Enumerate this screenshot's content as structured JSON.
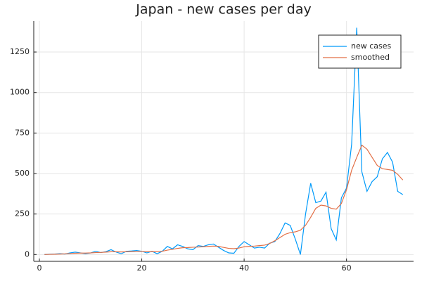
{
  "chart_data": {
    "type": "line",
    "title": "Japan - new cases per day",
    "x": [
      1,
      2,
      3,
      4,
      5,
      6,
      7,
      8,
      9,
      10,
      11,
      12,
      13,
      14,
      15,
      16,
      17,
      18,
      19,
      20,
      21,
      22,
      23,
      24,
      25,
      26,
      27,
      28,
      29,
      30,
      31,
      32,
      33,
      34,
      35,
      36,
      37,
      38,
      39,
      40,
      41,
      42,
      43,
      44,
      45,
      46,
      47,
      48,
      49,
      50,
      51,
      52,
      53,
      54,
      55,
      56,
      57,
      58,
      59,
      60,
      61,
      62,
      63,
      64,
      65,
      66,
      67,
      68,
      69,
      70,
      71
    ],
    "series": [
      {
        "name": "new cases",
        "color": "#009afa",
        "values": [
          0,
          2,
          3,
          5,
          3,
          10,
          15,
          10,
          5,
          10,
          20,
          12,
          18,
          30,
          15,
          5,
          20,
          22,
          25,
          20,
          10,
          20,
          5,
          20,
          50,
          35,
          60,
          50,
          35,
          30,
          55,
          50,
          60,
          65,
          45,
          25,
          10,
          8,
          50,
          80,
          60,
          40,
          45,
          40,
          70,
          80,
          130,
          195,
          180,
          95,
          0,
          250,
          440,
          320,
          330,
          385,
          160,
          90,
          350,
          410,
          680,
          1400,
          510,
          390,
          450,
          480,
          590,
          630,
          570,
          390,
          370
        ]
      },
      {
        "name": "smoothed",
        "color": "#e26f46",
        "values": [
          0,
          1,
          2,
          3,
          4,
          6,
          8,
          9,
          9,
          10,
          12,
          13,
          15,
          17,
          17,
          16,
          17,
          18,
          19,
          19,
          17,
          18,
          17,
          20,
          27,
          32,
          38,
          42,
          43,
          45,
          46,
          48,
          50,
          52,
          50,
          44,
          38,
          36,
          40,
          48,
          50,
          52,
          55,
          58,
          68,
          85,
          105,
          125,
          135,
          140,
          150,
          180,
          230,
          285,
          305,
          300,
          285,
          280,
          315,
          400,
          520,
          600,
          675,
          650,
          600,
          550,
          530,
          525,
          520,
          495,
          460
        ]
      }
    ],
    "xlim": [
      -1.1,
      73.1
    ],
    "xticks": [
      0,
      20,
      40,
      60
    ],
    "ylim": [
      -42,
      1441
    ],
    "yticks": [
      0,
      250,
      500,
      750,
      1000,
      1250
    ],
    "grid": true,
    "legend": "top-right"
  }
}
